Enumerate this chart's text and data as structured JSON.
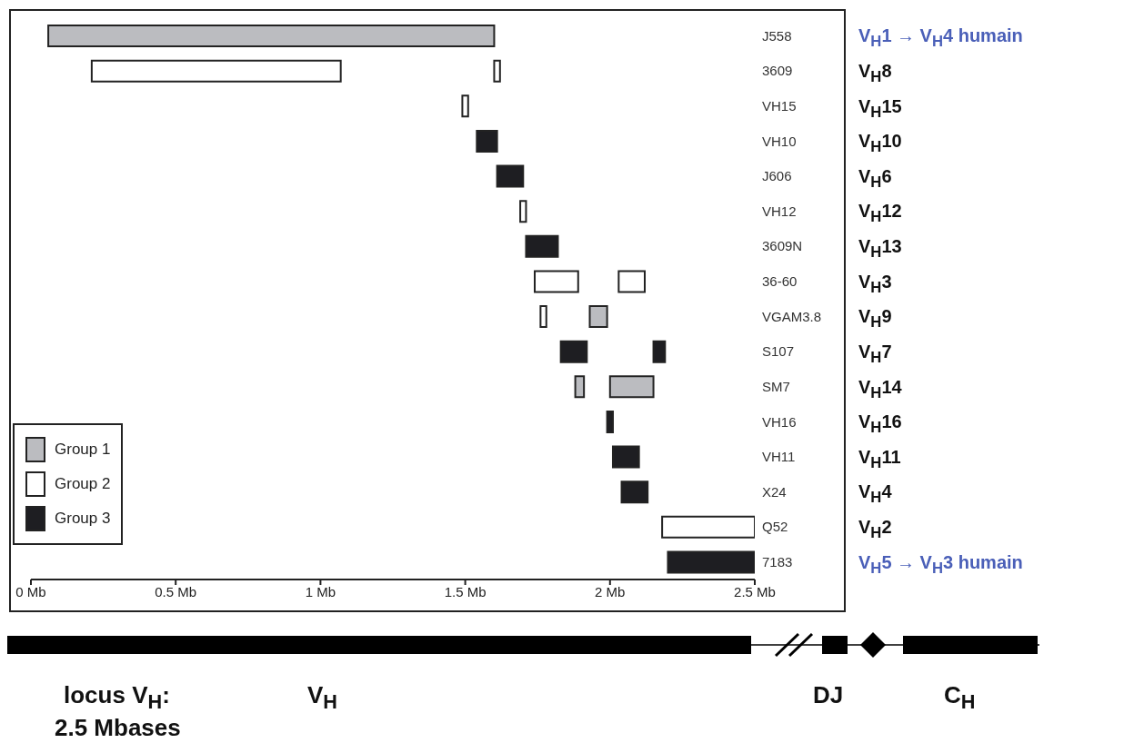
{
  "chart_data": {
    "type": "bar",
    "orientation": "horizontal",
    "categories": [
      "J558",
      "3609",
      "VH15",
      "VH10",
      "J606",
      "VH12",
      "3609N",
      "36-60",
      "VGAM3.8",
      "S107",
      "SM7",
      "VH16",
      "VH11",
      "X24",
      "Q52",
      "7183"
    ],
    "series": [
      {
        "name": "Group 1",
        "color": "#bbbcc0",
        "values": [
          1.54,
          null,
          null,
          null,
          null,
          null,
          null,
          null,
          0.06,
          null,
          0.15,
          null,
          null,
          null,
          null,
          null
        ],
        "base": [
          0.06,
          null,
          null,
          null,
          null,
          null,
          null,
          null,
          1.93,
          null,
          2.0,
          null,
          null,
          null,
          null,
          null
        ]
      },
      {
        "name": "Group 2",
        "color": "#ffffff",
        "values": [
          null,
          0.86,
          0.02,
          null,
          null,
          0.02,
          null,
          0.15,
          0.02,
          null,
          null,
          null,
          null,
          null,
          0.32,
          null
        ],
        "base": [
          null,
          0.21,
          1.49,
          null,
          null,
          1.69,
          null,
          1.74,
          1.76,
          null,
          null,
          null,
          null,
          null,
          2.18,
          null
        ]
      },
      {
        "name": "Group 3",
        "color": "#1e1e22",
        "values": [
          null,
          null,
          null,
          0.07,
          0.09,
          null,
          0.11,
          null,
          null,
          0.09,
          null,
          0.02,
          0.09,
          0.09,
          null,
          0.3
        ],
        "base": [
          null,
          null,
          null,
          1.54,
          1.61,
          null,
          1.71,
          null,
          null,
          1.83,
          null,
          1.99,
          2.01,
          2.04,
          null,
          2.2
        ]
      },
      {
        "color": "#bbbcc0",
        "values": [
          null,
          null,
          null,
          null,
          null,
          null,
          null,
          null,
          null,
          null,
          0.03,
          null,
          null,
          null,
          null,
          null
        ],
        "base": [
          null,
          null,
          null,
          null,
          null,
          null,
          null,
          null,
          null,
          null,
          1.88,
          null,
          null,
          null,
          null,
          null
        ]
      },
      {
        "color": "#ffffff",
        "values": [
          null,
          0.02,
          null,
          null,
          null,
          null,
          null,
          0.09,
          null,
          null,
          null,
          null,
          null,
          null,
          null,
          null
        ],
        "base": [
          null,
          1.6,
          null,
          null,
          null,
          null,
          null,
          2.03,
          null,
          null,
          null,
          null,
          null,
          null,
          null,
          null
        ]
      },
      {
        "color": "#1e1e22",
        "values": [
          null,
          null,
          null,
          null,
          null,
          null,
          null,
          null,
          null,
          0.04,
          null,
          null,
          null,
          null,
          null,
          null
        ],
        "base": [
          null,
          null,
          null,
          null,
          null,
          null,
          null,
          null,
          null,
          2.15,
          null,
          null,
          null,
          null,
          null,
          null
        ]
      }
    ],
    "xlim": [
      0,
      2.5
    ],
    "xticks": [
      {
        "value": 0,
        "label": "0 Mb"
      },
      {
        "value": 0.5,
        "label": "0.5 Mb"
      },
      {
        "value": 1,
        "label": "1 Mb"
      },
      {
        "value": 1.5,
        "label": "1.5 Mb"
      },
      {
        "value": 2,
        "label": "2 Mb"
      },
      {
        "value": 2.5,
        "label": "2.5 Mb"
      }
    ],
    "legend": "bottom left",
    "annotations": [
      "V$_{H}$1 → V$_{H}$4 humain",
      "V$_{H}$8",
      "V$_{H}$15",
      "V$_{H}$10",
      "V$_{H}$6",
      "V$_{H}$12",
      "V$_{H}$13",
      "V$_{H}$3",
      "V$_{H}$9",
      "V$_{H}$7",
      "V$_{H}$14",
      "V$_{H}$16",
      "V$_{H}$11",
      "V$_{H}$4",
      "V$_{H}$2",
      "V$_{H}$5 → V$_{H}$3 humain",
      "locus V$_{H}$:",
      "2.5 Mbases",
      "V$_{H}$",
      "DJ",
      "C$_{H}$"
    ]
  }
}
